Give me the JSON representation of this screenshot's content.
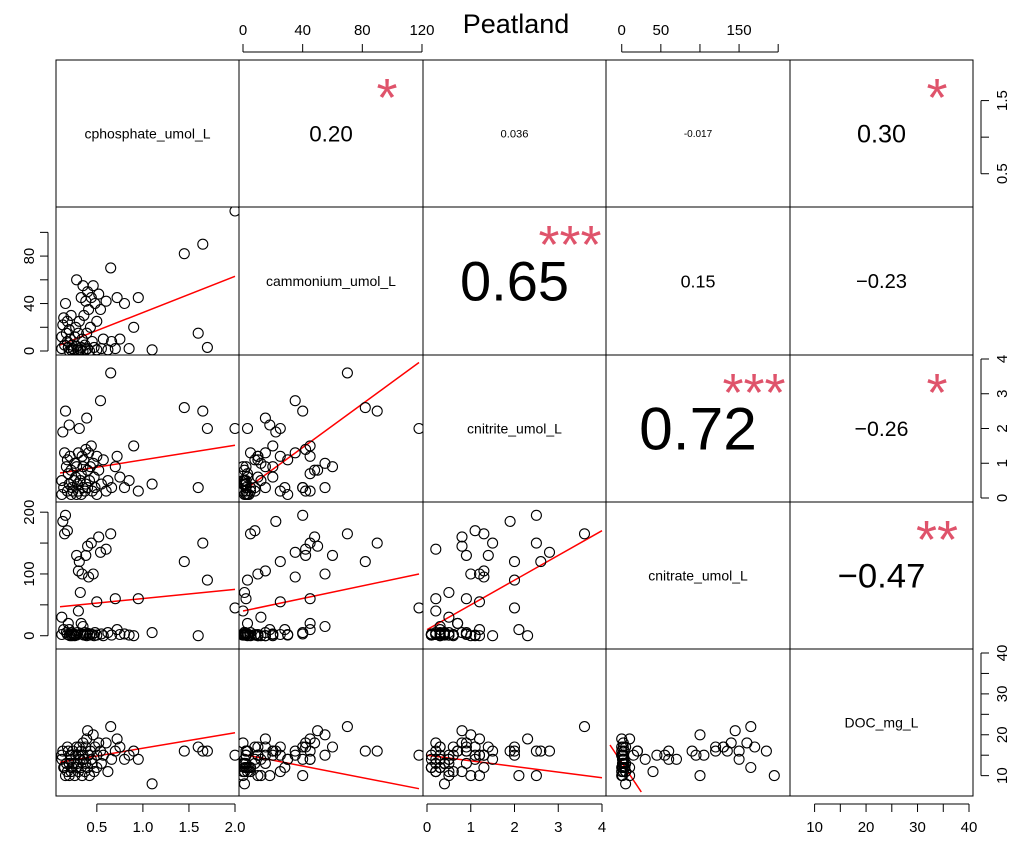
{
  "chart_data": {
    "type": "scatter",
    "title": "Peatland",
    "variables": [
      "cphosphate_umol_L",
      "cammonium_umol_L",
      "cnitrite_umol_L",
      "cnitrate_umol_L",
      "DOC_mg_L"
    ],
    "ranges": [
      [
        0.1,
        2.0
      ],
      [
        0,
        118
      ],
      [
        0,
        4
      ],
      [
        -15,
        210
      ],
      [
        6,
        40
      ]
    ],
    "correlations": [
      {
        "row": 0,
        "col": 1,
        "r": "0.20",
        "stars": "*",
        "size": 0.4
      },
      {
        "row": 0,
        "col": 2,
        "r": "0.036",
        "stars": "",
        "size": 0.2
      },
      {
        "row": 0,
        "col": 3,
        "r": "-0.017",
        "stars": "",
        "size": 0.15
      },
      {
        "row": 0,
        "col": 4,
        "r": "0.30",
        "stars": "*",
        "size": 0.45
      },
      {
        "row": 1,
        "col": 2,
        "r": "0.65",
        "stars": "***",
        "size": 1.0
      },
      {
        "row": 1,
        "col": 3,
        "r": "0.15",
        "stars": "",
        "size": 0.32
      },
      {
        "row": 1,
        "col": 4,
        "r": "−0.23",
        "stars": "",
        "size": 0.36
      },
      {
        "row": 2,
        "col": 3,
        "r": "0.72",
        "stars": "***",
        "size": 1.08
      },
      {
        "row": 2,
        "col": 4,
        "r": "−0.26",
        "stars": "*",
        "size": 0.38
      },
      {
        "row": 3,
        "col": 4,
        "r": "−0.47",
        "stars": "**",
        "size": 0.62
      }
    ],
    "axes": {
      "top": [
        {
          "col": 1,
          "ticks": [
            0,
            40,
            80,
            120
          ],
          "labels": [
            "0",
            "40",
            "80",
            "120"
          ]
        },
        {
          "col": 3,
          "ticks": [
            0,
            50,
            100,
            150,
            200
          ],
          "labels": [
            "0",
            "50",
            "",
            "150",
            ""
          ]
        }
      ],
      "bottom": [
        {
          "col": 0,
          "ticks": [
            0.5,
            1.0,
            1.5,
            2.0
          ],
          "labels": [
            "0.5",
            "1.0",
            "1.5",
            "2.0"
          ]
        },
        {
          "col": 2,
          "ticks": [
            0,
            1,
            2,
            3,
            4
          ],
          "labels": [
            "0",
            "1",
            "2",
            "3",
            "4"
          ]
        },
        {
          "col": 4,
          "ticks": [
            10,
            15,
            20,
            25,
            30,
            35,
            40
          ],
          "labels": [
            "10",
            "",
            "20",
            "",
            "30",
            "",
            "40"
          ]
        }
      ],
      "left": [
        {
          "row": 1,
          "ticks": [
            0,
            20,
            40,
            60,
            80,
            100
          ],
          "labels": [
            "0",
            "",
            "40",
            "",
            "80",
            ""
          ]
        },
        {
          "row": 3,
          "ticks": [
            0,
            50,
            100,
            150,
            200
          ],
          "labels": [
            "0",
            "",
            "100",
            "",
            "200"
          ]
        }
      ],
      "right": [
        {
          "row": 0,
          "ticks": [
            0.5,
            1.0,
            1.5
          ],
          "labels": [
            "0.5",
            "",
            "1.5"
          ]
        },
        {
          "row": 2,
          "ticks": [
            0,
            1,
            2,
            3,
            4
          ],
          "labels": [
            "0",
            "1",
            "2",
            "3",
            "4"
          ]
        },
        {
          "row": 4,
          "ticks": [
            10,
            15,
            20,
            25,
            30,
            35,
            40
          ],
          "labels": [
            "10",
            "",
            "20",
            "",
            "30",
            "",
            "40"
          ]
        }
      ]
    },
    "observations": [
      [
        0.12,
        2,
        0.1,
        2,
        15
      ],
      [
        0.12,
        12,
        0.5,
        30,
        14
      ],
      [
        0.13,
        22,
        1.9,
        185,
        16
      ],
      [
        0.14,
        28,
        0.3,
        10,
        12
      ],
      [
        0.15,
        5,
        1.3,
        165,
        12
      ],
      [
        0.16,
        40,
        2.5,
        195,
        10
      ],
      [
        0.17,
        15,
        0.9,
        5,
        13
      ],
      [
        0.18,
        25,
        0.2,
        2,
        11
      ],
      [
        0.18,
        8,
        1.1,
        170,
        17
      ],
      [
        0.19,
        3,
        0.7,
        20,
        16
      ],
      [
        0.2,
        18,
        2.1,
        10,
        10
      ],
      [
        0.2,
        0,
        0.4,
        1,
        13
      ],
      [
        0.21,
        10,
        1.2,
        0,
        15
      ],
      [
        0.22,
        30,
        0.1,
        2,
        14
      ],
      [
        0.22,
        1,
        0.8,
        5,
        11
      ],
      [
        0.23,
        5,
        0.3,
        0,
        12
      ],
      [
        0.24,
        2,
        0.2,
        3,
        16
      ],
      [
        0.25,
        1,
        0.5,
        1,
        13
      ],
      [
        0.26,
        12,
        1.0,
        0,
        10
      ],
      [
        0.27,
        20,
        0.6,
        2,
        15
      ],
      [
        0.28,
        60,
        0.9,
        130,
        17
      ],
      [
        0.28,
        4,
        0.1,
        1,
        12
      ],
      [
        0.29,
        1,
        0.4,
        5,
        13
      ],
      [
        0.3,
        15,
        1.3,
        105,
        15
      ],
      [
        0.3,
        0,
        0.2,
        40,
        11
      ],
      [
        0.31,
        25,
        2.0,
        120,
        17
      ],
      [
        0.32,
        1,
        0.5,
        70,
        14
      ],
      [
        0.33,
        45,
        0.7,
        20,
        16
      ],
      [
        0.33,
        3,
        0.1,
        3,
        12
      ],
      [
        0.34,
        10,
        1.2,
        100,
        10
      ],
      [
        0.35,
        55,
        0.3,
        15,
        15
      ],
      [
        0.35,
        0,
        0.9,
        2,
        18
      ],
      [
        0.36,
        30,
        1.1,
        1,
        14
      ],
      [
        0.37,
        5,
        0.2,
        5,
        11
      ],
      [
        0.38,
        42,
        1.4,
        130,
        17
      ],
      [
        0.38,
        1,
        0.4,
        2,
        13
      ],
      [
        0.39,
        15,
        2.3,
        0,
        19
      ],
      [
        0.4,
        50,
        0.8,
        145,
        21
      ],
      [
        0.4,
        2,
        0.3,
        4,
        12
      ],
      [
        0.41,
        35,
        1.3,
        95,
        15
      ],
      [
        0.42,
        0,
        0.5,
        1,
        10
      ],
      [
        0.43,
        20,
        0.9,
        3,
        16
      ],
      [
        0.44,
        45,
        1.5,
        150,
        14
      ],
      [
        0.45,
        8,
        0.2,
        2,
        13
      ],
      [
        0.46,
        55,
        1.0,
        100,
        20
      ],
      [
        0.47,
        3,
        0.6,
        0,
        11
      ],
      [
        0.48,
        40,
        0.3,
        5,
        17
      ],
      [
        0.5,
        25,
        1.2,
        55,
        15
      ],
      [
        0.5,
        1,
        0.1,
        1,
        12
      ],
      [
        0.52,
        48,
        0.8,
        160,
        18
      ],
      [
        0.54,
        35,
        2.8,
        135,
        16
      ],
      [
        0.55,
        2,
        0.4,
        3,
        13
      ],
      [
        0.57,
        10,
        1.1,
        0,
        15
      ],
      [
        0.6,
        42,
        0.2,
        140,
        18
      ],
      [
        0.62,
        1,
        0.5,
        5,
        11
      ],
      [
        0.65,
        70,
        3.6,
        165,
        22
      ],
      [
        0.66,
        8,
        0.3,
        1,
        14
      ],
      [
        0.7,
        2,
        0.9,
        60,
        16
      ],
      [
        0.72,
        45,
        1.2,
        10,
        19
      ],
      [
        0.75,
        10,
        0.6,
        2,
        17
      ],
      [
        0.8,
        40,
        0.3,
        3,
        14
      ],
      [
        0.85,
        2,
        0.5,
        1,
        15
      ],
      [
        0.9,
        20,
        1.5,
        0,
        16
      ],
      [
        0.95,
        45,
        0.2,
        60,
        14
      ],
      [
        1.1,
        1,
        0.4,
        5,
        8
      ],
      [
        1.45,
        82,
        2.6,
        120,
        16
      ],
      [
        1.6,
        15,
        0.3,
        0,
        17
      ],
      [
        1.65,
        90,
        2.5,
        150,
        16
      ],
      [
        1.7,
        3,
        2.0,
        90,
        16
      ],
      [
        2.0,
        118,
        2.0,
        45,
        15
      ]
    ],
    "fits": [
      {
        "row": 1,
        "col": 0,
        "x1": 0.1,
        "y1": 5,
        "x2": 2.0,
        "y2": 63
      },
      {
        "row": 2,
        "col": 0,
        "x1": 0.1,
        "y1": 0.72,
        "x2": 2.0,
        "y2": 1.52
      },
      {
        "row": 3,
        "col": 0,
        "x1": 0.1,
        "y1": 47,
        "x2": 2.0,
        "y2": 75
      },
      {
        "row": 4,
        "col": 0,
        "x1": 0.1,
        "y1": 13.3,
        "x2": 2.0,
        "y2": 20.5
      },
      {
        "row": 2,
        "col": 1,
        "x1": 0,
        "y1": 0.2,
        "x2": 118,
        "y2": 3.9
      },
      {
        "row": 3,
        "col": 1,
        "x1": 0,
        "y1": 40,
        "x2": 118,
        "y2": 100
      },
      {
        "row": 4,
        "col": 1,
        "x1": 0,
        "y1": 15.2,
        "x2": 118,
        "y2": 6.8
      },
      {
        "row": 3,
        "col": 2,
        "x1": 0,
        "y1": 10,
        "x2": 4,
        "y2": 170
      },
      {
        "row": 4,
        "col": 2,
        "x1": 0,
        "y1": 15,
        "x2": 4,
        "y2": 9.5
      },
      {
        "row": 4,
        "col": 3,
        "x1": -15,
        "y1": 17.5,
        "x2": 25,
        "y2": 6
      }
    ]
  }
}
